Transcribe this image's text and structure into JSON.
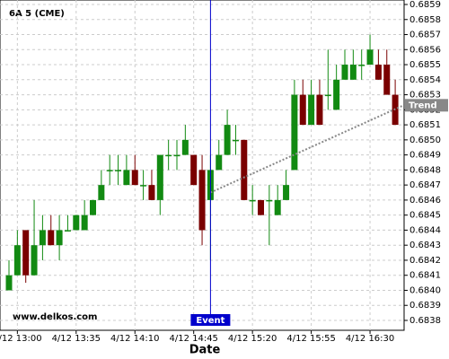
{
  "chart_data": {
    "type": "candlestick",
    "title": "6A 5 (CME)",
    "x_label": "Date",
    "watermark": "www.delkos.com",
    "categories": [
      null,
      "4/12 13:00",
      null,
      null,
      null,
      null,
      null,
      null,
      "4/12 13:35",
      null,
      null,
      null,
      null,
      null,
      null,
      "4/12 14:10",
      null,
      null,
      null,
      null,
      null,
      null,
      "4/12 14:45",
      null,
      null,
      null,
      null,
      null,
      null,
      "4/12 15:20",
      null,
      null,
      null,
      null,
      null,
      null,
      "4/12 15:55",
      null,
      null,
      null,
      null,
      null,
      null,
      "4/12 16:30",
      null,
      null,
      null
    ],
    "open": [
      0.684,
      0.6841,
      0.6844,
      0.6841,
      0.6843,
      0.6844,
      0.6843,
      0.6844,
      0.6844,
      0.6844,
      0.6845,
      0.6846,
      0.6848,
      0.6848,
      0.6847,
      0.6848,
      0.6847,
      0.6847,
      0.6846,
      0.6849,
      0.6849,
      0.6849,
      0.6849,
      0.6848,
      0.6846,
      0.6848,
      0.6849,
      0.685,
      0.685,
      0.6846,
      0.6846,
      0.6846,
      0.6845,
      0.6846,
      0.6848,
      0.6853,
      0.6851,
      0.6853,
      0.6853,
      0.6852,
      0.6854,
      0.6854,
      0.6855,
      0.6855,
      0.6855,
      0.6855,
      0.6853
    ],
    "high": [
      0.6842,
      0.6844,
      0.6844,
      0.6846,
      0.6845,
      0.6845,
      0.6845,
      0.6845,
      0.6845,
      0.6846,
      0.6846,
      0.6848,
      0.6849,
      0.6849,
      0.6849,
      0.6849,
      0.6848,
      0.6848,
      0.6849,
      0.685,
      0.685,
      0.6851,
      0.6849,
      0.6849,
      0.6849,
      0.685,
      0.6852,
      0.6851,
      0.685,
      0.6847,
      0.6846,
      0.6847,
      0.6847,
      0.6848,
      0.6854,
      0.6854,
      0.6854,
      0.6854,
      0.6856,
      0.6855,
      0.6856,
      0.6856,
      0.6856,
      0.6857,
      0.6856,
      0.6856,
      0.6854
    ],
    "low": [
      0.684,
      0.6841,
      0.68405,
      0.6841,
      0.6842,
      0.6843,
      0.6842,
      0.6844,
      0.6844,
      0.6844,
      0.6845,
      0.6846,
      0.6847,
      0.6847,
      0.6847,
      0.6847,
      0.6846,
      0.6846,
      0.6845,
      0.6848,
      0.6848,
      0.6849,
      0.6847,
      0.6843,
      0.6842,
      0.6848,
      0.6849,
      0.6849,
      0.6846,
      0.6845,
      0.6845,
      0.6843,
      0.6845,
      0.6846,
      0.6848,
      0.6851,
      0.6851,
      0.6851,
      0.6852,
      0.6852,
      0.6854,
      0.6854,
      0.6854,
      0.6855,
      0.6854,
      0.6853,
      0.6851
    ],
    "close": [
      0.6841,
      0.6843,
      0.6841,
      0.6843,
      0.6844,
      0.6843,
      0.6844,
      0.6844,
      0.6845,
      0.6845,
      0.6846,
      0.6847,
      0.6848,
      0.6848,
      0.6848,
      0.6847,
      0.6847,
      0.6846,
      0.6849,
      0.6849,
      0.6849,
      0.685,
      0.6847,
      0.6844,
      0.6848,
      0.6849,
      0.6851,
      0.685,
      0.6846,
      0.6846,
      0.6845,
      0.6846,
      0.6846,
      0.6847,
      0.6853,
      0.6851,
      0.6853,
      0.6851,
      0.6853,
      0.6854,
      0.6855,
      0.6855,
      0.6855,
      0.6856,
      0.6854,
      0.6853,
      0.6851
    ],
    "up_color": "#128a12",
    "down_color": "#7a0000",
    "ylim": [
      0.6838,
      0.6859
    ],
    "yticks": [
      0.6838,
      0.6839,
      {
        "value": 0.684,
        "label": "0.6840"
      },
      0.6841,
      0.6842,
      0.6843,
      0.6844,
      0.6845,
      0.6846,
      0.6847,
      0.6848,
      0.6849,
      {
        "value": 0.685,
        "label": "0.6850"
      },
      0.6851,
      0.6852,
      0.6853,
      0.6854,
      0.6855,
      0.6856,
      0.6857,
      0.6858,
      0.6859
    ],
    "grid": true,
    "event": {
      "label": "Event",
      "index": 24,
      "color": "#0000cc"
    },
    "trend": {
      "label": "Trend",
      "x": [
        24,
        47
      ],
      "y": [
        0.68465,
        0.68523
      ],
      "color": "#888888"
    }
  }
}
